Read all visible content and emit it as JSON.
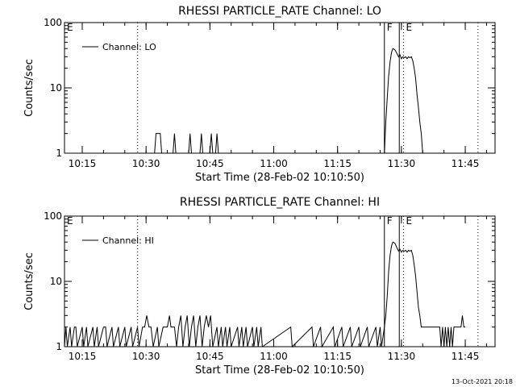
{
  "footer": {
    "timestamp": "13-Oct-2021 20:18"
  },
  "chart_data": [
    {
      "type": "line",
      "title": "RHESSI PARTICLE_RATE Channel: LO",
      "xlabel": "Start Time (28-Feb-02 10:10:50)",
      "ylabel": "Counts/sec",
      "xlim": [
        "10:10:50",
        "11:52:00"
      ],
      "ylim": [
        1,
        100
      ],
      "yscale": "log",
      "grid": false,
      "x_ticks": [
        "10:15",
        "10:30",
        "10:45",
        "11:00",
        "11:15",
        "11:30",
        "11:45"
      ],
      "y_ticks": [
        {
          "value": 1,
          "label": "1"
        },
        {
          "value": 10,
          "label": "10"
        },
        {
          "value": 100,
          "label": "100"
        }
      ],
      "legend": {
        "position": "top-left"
      },
      "event_markers": [
        {
          "time": "10:10:50",
          "label": "E",
          "style": "dotted"
        },
        {
          "time": "10:28:00",
          "label": "",
          "style": "dotted"
        },
        {
          "time": "11:26:00",
          "label": "F",
          "style": "solid"
        },
        {
          "time": "11:29:30",
          "label": "",
          "style": "solid"
        },
        {
          "time": "11:30:30",
          "label": "E",
          "style": "dotted"
        },
        {
          "time": "11:48:00",
          "label": "",
          "style": "dotted"
        }
      ],
      "series": [
        {
          "name": "Channel: LO",
          "points": [
            [
              "10:10:50",
              1
            ],
            [
              "10:32:00",
              1
            ],
            [
              "10:32:20",
              2
            ],
            [
              "10:33:20",
              2
            ],
            [
              "10:33:40",
              1
            ],
            [
              "10:36:20",
              1
            ],
            [
              "10:36:40",
              2
            ],
            [
              "10:37:00",
              1
            ],
            [
              "10:40:00",
              1
            ],
            [
              "10:40:20",
              2
            ],
            [
              "10:40:40",
              1
            ],
            [
              "10:42:40",
              1
            ],
            [
              "10:43:00",
              2
            ],
            [
              "10:43:20",
              1
            ],
            [
              "10:45:00",
              1
            ],
            [
              "10:45:20",
              2
            ],
            [
              "10:45:40",
              1
            ],
            [
              "10:46:20",
              1
            ],
            [
              "10:46:40",
              2
            ],
            [
              "10:47:00",
              1
            ],
            [
              "11:26:00",
              1
            ],
            [
              "11:26:20",
              3
            ],
            [
              "11:26:40",
              7
            ],
            [
              "11:27:00",
              15
            ],
            [
              "11:27:20",
              25
            ],
            [
              "11:27:40",
              35
            ],
            [
              "11:28:00",
              40
            ],
            [
              "11:28:30",
              38
            ],
            [
              "11:29:00",
              33
            ],
            [
              "11:29:20",
              30
            ],
            [
              "11:29:40",
              32
            ],
            [
              "11:30:00",
              28
            ],
            [
              "11:30:20",
              30
            ],
            [
              "11:30:40",
              29
            ],
            [
              "11:31:00",
              30
            ],
            [
              "11:31:20",
              28
            ],
            [
              "11:31:40",
              30
            ],
            [
              "11:32:00",
              29
            ],
            [
              "11:32:20",
              30
            ],
            [
              "11:32:40",
              26
            ],
            [
              "11:33:00",
              20
            ],
            [
              "11:33:20",
              14
            ],
            [
              "11:33:40",
              8
            ],
            [
              "11:34:00",
              5
            ],
            [
              "11:34:20",
              3
            ],
            [
              "11:34:40",
              2
            ],
            [
              "11:35:00",
              1
            ]
          ]
        }
      ]
    },
    {
      "type": "line",
      "title": "RHESSI PARTICLE_RATE Channel: HI",
      "xlabel": "Start Time (28-Feb-02 10:10:50)",
      "ylabel": "Counts/sec",
      "xlim": [
        "10:10:50",
        "11:52:00"
      ],
      "ylim": [
        1,
        100
      ],
      "yscale": "log",
      "grid": false,
      "x_ticks": [
        "10:15",
        "10:30",
        "10:45",
        "11:00",
        "11:15",
        "11:30",
        "11:45"
      ],
      "y_ticks": [
        {
          "value": 1,
          "label": "1"
        },
        {
          "value": 10,
          "label": "10"
        },
        {
          "value": 100,
          "label": "100"
        }
      ],
      "legend": {
        "position": "top-left"
      },
      "event_markers": [
        {
          "time": "10:10:50",
          "label": "E",
          "style": "dotted"
        },
        {
          "time": "10:28:00",
          "label": "",
          "style": "dotted"
        },
        {
          "time": "11:26:00",
          "label": "F",
          "style": "solid"
        },
        {
          "time": "11:29:30",
          "label": "",
          "style": "solid"
        },
        {
          "time": "11:30:30",
          "label": "E",
          "style": "dotted"
        },
        {
          "time": "11:48:00",
          "label": "",
          "style": "dotted"
        }
      ],
      "series": [
        {
          "name": "Channel: HI",
          "points": [
            [
              "10:10:50",
              1
            ],
            [
              "10:11:10",
              2
            ],
            [
              "10:11:30",
              1
            ],
            [
              "10:12:10",
              2
            ],
            [
              "10:12:30",
              1
            ],
            [
              "10:13:10",
              2
            ],
            [
              "10:13:30",
              2
            ],
            [
              "10:13:50",
              1
            ],
            [
              "10:15:00",
              2
            ],
            [
              "10:15:20",
              1
            ],
            [
              "10:16:00",
              2
            ],
            [
              "10:16:20",
              1
            ],
            [
              "10:17:30",
              2
            ],
            [
              "10:17:50",
              1
            ],
            [
              "10:18:30",
              2
            ],
            [
              "10:18:50",
              1
            ],
            [
              "10:20:00",
              2
            ],
            [
              "10:20:30",
              2
            ],
            [
              "10:20:50",
              1
            ],
            [
              "10:22:00",
              2
            ],
            [
              "10:22:20",
              1
            ],
            [
              "10:23:30",
              2
            ],
            [
              "10:23:50",
              1
            ],
            [
              "10:25:00",
              2
            ],
            [
              "10:25:20",
              1
            ],
            [
              "10:26:30",
              2
            ],
            [
              "10:26:50",
              1
            ],
            [
              "10:28:00",
              2
            ],
            [
              "10:28:20",
              1
            ],
            [
              "10:29:10",
              2
            ],
            [
              "10:29:40",
              2
            ],
            [
              "10:30:10",
              3
            ],
            [
              "10:30:40",
              2
            ],
            [
              "10:31:10",
              2
            ],
            [
              "10:31:40",
              1
            ],
            [
              "10:32:40",
              2
            ],
            [
              "10:33:00",
              1
            ],
            [
              "10:34:00",
              2
            ],
            [
              "10:35:00",
              2
            ],
            [
              "10:35:30",
              3
            ],
            [
              "10:35:50",
              2
            ],
            [
              "10:36:40",
              2
            ],
            [
              "10:37:10",
              1
            ],
            [
              "10:37:40",
              2
            ],
            [
              "10:38:10",
              3
            ],
            [
              "10:38:40",
              1
            ],
            [
              "10:39:10",
              2
            ],
            [
              "10:39:40",
              3
            ],
            [
              "10:40:10",
              1
            ],
            [
              "10:40:40",
              2
            ],
            [
              "10:41:10",
              3
            ],
            [
              "10:41:40",
              1
            ],
            [
              "10:42:10",
              2
            ],
            [
              "10:42:40",
              3
            ],
            [
              "10:43:10",
              1
            ],
            [
              "10:43:40",
              2
            ],
            [
              "10:44:10",
              3
            ],
            [
              "10:44:40",
              2
            ],
            [
              "10:45:10",
              3
            ],
            [
              "10:45:40",
              1
            ],
            [
              "10:46:40",
              2
            ],
            [
              "10:47:00",
              1
            ],
            [
              "10:47:40",
              2
            ],
            [
              "10:48:00",
              1
            ],
            [
              "10:48:40",
              2
            ],
            [
              "10:49:00",
              1
            ],
            [
              "10:49:40",
              2
            ],
            [
              "10:50:00",
              1
            ],
            [
              "10:51:30",
              2
            ],
            [
              "10:51:50",
              1
            ],
            [
              "10:52:30",
              2
            ],
            [
              "10:52:50",
              1
            ],
            [
              "10:53:30",
              2
            ],
            [
              "10:53:50",
              1
            ],
            [
              "10:55:00",
              2
            ],
            [
              "10:55:20",
              1
            ],
            [
              "10:56:00",
              2
            ],
            [
              "10:56:20",
              1
            ],
            [
              "10:57:00",
              2
            ],
            [
              "10:57:20",
              1
            ],
            [
              "11:04:00",
              2
            ],
            [
              "11:04:20",
              1
            ],
            [
              "11:09:00",
              2
            ],
            [
              "11:09:20",
              1
            ],
            [
              "11:11:00",
              2
            ],
            [
              "11:11:20",
              1
            ],
            [
              "11:14:00",
              2
            ],
            [
              "11:14:20",
              1
            ],
            [
              "11:16:00",
              2
            ],
            [
              "11:16:20",
              1
            ],
            [
              "11:18:00",
              2
            ],
            [
              "11:18:20",
              1
            ],
            [
              "11:20:00",
              2
            ],
            [
              "11:20:20",
              1
            ],
            [
              "11:22:00",
              2
            ],
            [
              "11:22:20",
              1
            ],
            [
              "11:24:00",
              2
            ],
            [
              "11:24:20",
              1
            ],
            [
              "11:25:00",
              2
            ],
            [
              "11:25:20",
              1
            ],
            [
              "11:26:00",
              2
            ],
            [
              "11:26:20",
              3
            ],
            [
              "11:26:40",
              6
            ],
            [
              "11:27:00",
              14
            ],
            [
              "11:27:20",
              25
            ],
            [
              "11:27:40",
              35
            ],
            [
              "11:28:00",
              40
            ],
            [
              "11:28:30",
              38
            ],
            [
              "11:29:00",
              32
            ],
            [
              "11:29:20",
              29
            ],
            [
              "11:29:40",
              31
            ],
            [
              "11:30:00",
              28
            ],
            [
              "11:30:20",
              30
            ],
            [
              "11:30:40",
              29
            ],
            [
              "11:31:00",
              30
            ],
            [
              "11:31:20",
              28
            ],
            [
              "11:31:40",
              30
            ],
            [
              "11:32:00",
              29
            ],
            [
              "11:32:20",
              30
            ],
            [
              "11:32:40",
              25
            ],
            [
              "11:33:00",
              18
            ],
            [
              "11:33:20",
              12
            ],
            [
              "11:33:40",
              7
            ],
            [
              "11:34:00",
              4
            ],
            [
              "11:34:20",
              3
            ],
            [
              "11:34:40",
              2
            ],
            [
              "11:35:30",
              2
            ],
            [
              "11:38:30",
              2
            ],
            [
              "11:39:00",
              2
            ],
            [
              "11:39:20",
              1
            ],
            [
              "11:39:40",
              2
            ],
            [
              "11:40:00",
              1
            ],
            [
              "11:40:20",
              2
            ],
            [
              "11:40:40",
              1
            ],
            [
              "11:41:00",
              2
            ],
            [
              "11:41:20",
              1
            ],
            [
              "11:41:40",
              2
            ],
            [
              "11:42:00",
              1
            ],
            [
              "11:42:20",
              2
            ],
            [
              "11:42:40",
              2
            ],
            [
              "11:44:00",
              2
            ],
            [
              "11:44:20",
              3
            ],
            [
              "11:44:40",
              2
            ],
            [
              "11:45:00",
              2
            ]
          ]
        }
      ]
    }
  ]
}
